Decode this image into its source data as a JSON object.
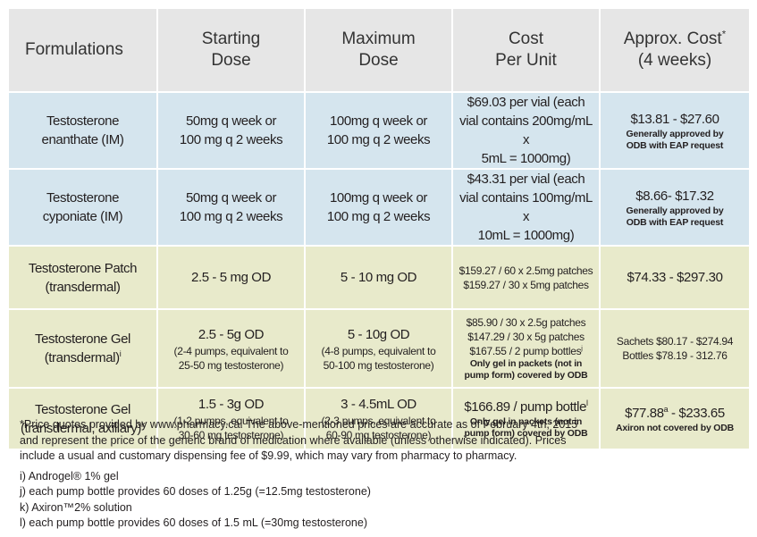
{
  "table": {
    "header": [
      {
        "lines": [
          "Formulations"
        ]
      },
      {
        "lines": [
          "Starting",
          "Dose"
        ]
      },
      {
        "lines": [
          "Maximum",
          "Dose"
        ]
      },
      {
        "lines": [
          "Cost",
          "Per Unit"
        ]
      },
      {
        "lines": [
          {
            "text": "Approx. Cost",
            "sup": "*"
          },
          "(4 weeks)"
        ]
      }
    ],
    "rows": [
      {
        "color": "#d5e5ee",
        "cells": [
          {
            "lines": [
              "Testosterone",
              "enanthate (IM)"
            ]
          },
          {
            "lines": [
              "50mg q week or",
              "100 mg q 2 weeks"
            ]
          },
          {
            "lines": [
              "100mg q week or",
              "100 mg q 2 weeks"
            ]
          },
          {
            "lines": [
              "$69.03 per vial (each",
              "vial contains 200mg/mL x",
              "5mL = 1000mg)"
            ]
          },
          {
            "lines": [
              "$13.81 - $27.60"
            ],
            "notes": [
              "Generally approved by",
              "ODB with EAP request"
            ]
          }
        ]
      },
      {
        "color": "#d5e5ee",
        "cells": [
          {
            "lines": [
              "Testosterone",
              "cyponiate (IM)"
            ]
          },
          {
            "lines": [
              "50mg q week or",
              "100 mg q 2 weeks"
            ]
          },
          {
            "lines": [
              "100mg q week or",
              "100 mg q 2 weeks"
            ]
          },
          {
            "lines": [
              "$43.31 per vial (each",
              "vial contains 100mg/mL x",
              "10mL = 1000mg)"
            ]
          },
          {
            "lines": [
              "$8.66- $17.32"
            ],
            "notes": [
              "Generally approved by",
              "ODB with EAP request"
            ]
          }
        ]
      },
      {
        "color": "#e8eacb",
        "cells": [
          {
            "lines": [
              "Testosterone  Patch",
              "(transdermal)"
            ]
          },
          {
            "lines": [
              "2.5 - 5 mg OD"
            ]
          },
          {
            "lines": [
              "5 - 10 mg OD"
            ]
          },
          {
            "detail": [
              "$159.27 / 60 x 2.5mg patches",
              "$159.27 / 30 x 5mg patches"
            ]
          },
          {
            "lines": [
              "$74.33 - $297.30"
            ]
          }
        ]
      },
      {
        "color": "#e8eacb",
        "cells": [
          {
            "lines": [
              "Testosterone Gel",
              {
                "text": "(transdermal)",
                "sup": "i"
              }
            ]
          },
          {
            "lines": [
              "2.5 - 5g OD"
            ],
            "detail": [
              "(2-4 pumps, equivalent to",
              "25-50 mg testosterone)"
            ]
          },
          {
            "lines": [
              "5 - 10g OD"
            ],
            "detail": [
              "(4-8 pumps, equivalent to",
              "50-100 mg testosterone)"
            ]
          },
          {
            "detail": [
              "$85.90 / 30 x 2.5g patches",
              "$147.29 / 30 x 5g patches",
              {
                "text": "$167.55 / 2 pump bottles",
                "sup": "j"
              }
            ],
            "notes": [
              "Only gel in packets (not in",
              "pump form) covered by ODB"
            ]
          },
          {
            "detail": [
              "Sachets $80.17 - $274.94",
              "Bottles $78.19 - 312.76"
            ]
          }
        ]
      },
      {
        "color": "#e8eacb",
        "cells": [
          {
            "lines": [
              "Testosterone Gel",
              {
                "text": "(transdermal, axillary)",
                "sup": "k"
              }
            ]
          },
          {
            "lines": [
              "1.5 - 3g OD"
            ],
            "detail": [
              "(1-2 pumps, equivalent to",
              "30-60 mg testosterone)"
            ]
          },
          {
            "lines": [
              "3 - 4.5mL OD"
            ],
            "detail": [
              "(2-3 pumps, equivalent to",
              "60-90 mg testosterone)"
            ]
          },
          {
            "lines": [
              {
                "text": "$166.89 / pump bottle",
                "sup": "l"
              }
            ],
            "notes": [
              "Only gel in packets (not in",
              "pump form) covered by ODB"
            ]
          },
          {
            "lines": [
              {
                "text": "$77.88",
                "sup": "a",
                "after": " - $233.65"
              }
            ],
            "notes": [
              "Axiron not covered by ODB"
            ]
          }
        ]
      }
    ]
  },
  "footer": {
    "paragraph": [
      "*Price quotes provided by www.pharmacy.ca. The above-mentioned prices are accurate as of February 4th, 2015",
      "and represent the price of the generic brand of medication where available (unless otherwise indicated). Prices",
      "include a usual and customary dispensing fee of $9.99, which may vary from pharmacy to pharmacy."
    ],
    "notes": [
      "i) Androgel® 1% gel",
      "j) each pump bottle provides 60 doses of 1.25g (=12.5mg testosterone)",
      "k) Axiron™2% solution",
      "l) each pump bottle provides 60 doses of 1.5 mL (=30mg testosterone)"
    ]
  }
}
